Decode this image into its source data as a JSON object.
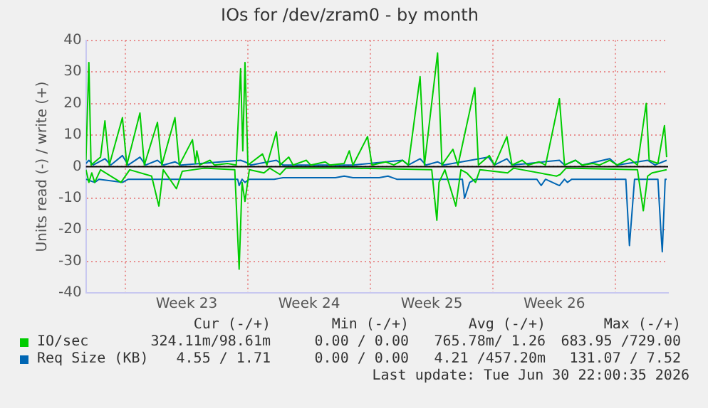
{
  "chart_data": {
    "type": "line",
    "title": "IOs for /dev/zram0 - by month",
    "ylabel": "Units read (-) / write (+)",
    "xlim": [
      "2026-05-29T18:00",
      "2026-07-02T00:00"
    ],
    "xticks": [
      {
        "value": "2026-06-01T00:00",
        "label": null
      },
      {
        "value": "2026-06-04T12:00",
        "label": "Week 23"
      },
      {
        "value": "2026-06-08T00:00",
        "label": null
      },
      {
        "value": "2026-06-11T12:00",
        "label": "Week 24"
      },
      {
        "value": "2026-06-15T00:00",
        "label": null
      },
      {
        "value": "2026-06-18T12:00",
        "label": "Week 25"
      },
      {
        "value": "2026-06-22T00:00",
        "label": null
      },
      {
        "value": "2026-06-25T12:00",
        "label": "Week 26"
      },
      {
        "value": "2026-06-29T00:00",
        "label": null
      }
    ],
    "ylim": [
      -40,
      40
    ],
    "yticks": [
      -40,
      -30,
      -20,
      -10,
      0,
      10,
      20,
      30,
      40
    ],
    "grid": true,
    "legend": "bottom",
    "ref_lines": [
      {
        "axis": "y",
        "value": 0,
        "color": "#000000"
      }
    ],
    "marker": "none",
    "line_style": "solid",
    "series": [
      {
        "name": "IO/sec",
        "color": "#00cc00",
        "x": [
          "2026-05-29T18:00",
          "2026-05-29T22:00",
          "2026-05-30T01:00",
          "2026-05-30T14:00",
          "2026-05-30T20:00",
          "2026-05-31T02:00",
          "2026-05-31T20:00",
          "2026-06-01T02:00",
          "2026-06-01T20:00",
          "2026-06-02T02:00",
          "2026-06-02T20:00",
          "2026-06-03T02:00",
          "2026-06-03T20:00",
          "2026-06-04T02:00",
          "2026-06-04T20:00",
          "2026-06-05T00:00",
          "2026-06-05T02:00",
          "2026-06-05T06:00",
          "2026-06-05T20:00",
          "2026-06-06T02:00",
          "2026-06-06T20:00",
          "2026-06-07T08:00",
          "2026-06-07T14:00",
          "2026-06-07T17:00",
          "2026-06-07T20:00",
          "2026-06-08T00:00",
          "2026-06-08T20:00",
          "2026-06-09T02:00",
          "2026-06-09T15:00",
          "2026-06-09T20:00",
          "2026-06-10T08:00",
          "2026-06-10T14:00",
          "2026-06-11T08:00",
          "2026-06-11T14:00",
          "2026-06-12T10:00",
          "2026-06-12T16:00",
          "2026-06-13T12:00",
          "2026-06-13T19:00",
          "2026-06-14T00:00",
          "2026-06-14T20:00",
          "2026-06-15T02:00",
          "2026-06-15T21:00",
          "2026-06-16T08:00",
          "2026-06-16T20:00",
          "2026-06-17T04:00",
          "2026-06-17T20:00",
          "2026-06-18T02:00",
          "2026-06-18T20:00",
          "2026-06-19T02:00",
          "2026-06-19T17:00",
          "2026-06-20T00:00",
          "2026-06-20T23:00",
          "2026-06-21T04:00",
          "2026-06-21T19:00",
          "2026-06-22T02:00",
          "2026-06-22T19:00",
          "2026-06-23T02:00",
          "2026-06-23T16:00",
          "2026-06-24T00:00",
          "2026-06-24T15:00",
          "2026-06-25T00:00",
          "2026-06-25T19:00",
          "2026-06-26T02:00",
          "2026-06-26T17:00",
          "2026-06-27T02:00",
          "2026-06-27T17:00",
          "2026-06-28T02:00",
          "2026-06-28T16:00",
          "2026-06-29T02:00",
          "2026-06-29T19:00",
          "2026-06-30T06:00",
          "2026-06-30T18:00",
          "2026-06-30T22:00",
          "2026-07-01T10:00",
          "2026-07-01T19:00",
          "2026-07-01T22:00"
        ],
        "values": [
          2,
          33,
          0.5,
          3,
          14.5,
          0.5,
          15.5,
          0.5,
          17,
          0.5,
          14,
          0.5,
          15.5,
          0.5,
          8.5,
          1,
          5,
          0.5,
          2,
          0.5,
          1,
          0.5,
          31,
          5,
          33,
          0.5,
          4,
          0.5,
          11,
          0.5,
          3,
          0.5,
          2,
          0.5,
          1.5,
          0.5,
          1,
          5,
          0.5,
          9.5,
          0.5,
          1.5,
          0.5,
          2,
          0.5,
          28.5,
          0.5,
          36,
          0.5,
          5.5,
          0.5,
          25,
          0.5,
          3.5,
          0.5,
          9.5,
          0.5,
          2,
          0.5,
          1.5,
          0.5,
          21.5,
          0.5,
          2,
          0.5,
          1,
          0.5,
          2,
          0.5,
          2.5,
          0.5,
          20,
          2,
          1,
          13,
          3
        ]
      },
      {
        "color": "#00cc00",
        "x": [
          "2026-05-29T18:00",
          "2026-05-29T22:00",
          "2026-05-30T02:00",
          "2026-05-30T06:00",
          "2026-05-30T14:00",
          "2026-05-31T18:00",
          "2026-06-01T06:00",
          "2026-06-02T12:00",
          "2026-06-02T22:00",
          "2026-06-03T04:00",
          "2026-06-03T22:00",
          "2026-06-04T06:00",
          "2026-06-05T12:00",
          "2026-06-07T06:00",
          "2026-06-07T12:00",
          "2026-06-07T16:00",
          "2026-06-07T20:00",
          "2026-06-08T02:00",
          "2026-06-08T22:00",
          "2026-06-09T06:00",
          "2026-06-09T20:00",
          "2026-06-10T04:00",
          "2026-06-14T00:00",
          "2026-06-18T12:00",
          "2026-06-18T19:00",
          "2026-06-18T22:00",
          "2026-06-19T06:00",
          "2026-06-19T21:00",
          "2026-06-20T04:00",
          "2026-06-20T12:00",
          "2026-06-21T00:00",
          "2026-06-21T06:00",
          "2026-06-22T20:00",
          "2026-06-23T04:00",
          "2026-06-25T15:00",
          "2026-06-25T20:00",
          "2026-06-26T04:00",
          "2026-06-30T06:00",
          "2026-06-30T14:00",
          "2026-06-30T20:00",
          "2026-07-01T02:00",
          "2026-07-01T22:00"
        ],
        "values": [
          -1,
          -5,
          -2,
          -5,
          -1,
          -5,
          -1,
          -3,
          -12.5,
          -1,
          -7,
          -1.5,
          -0.5,
          -1,
          -32.5,
          -5,
          -11,
          -1,
          -2,
          -0.5,
          -2.5,
          -0.5,
          -0.5,
          -1,
          -17,
          -5,
          -1,
          -12.5,
          -1,
          -2,
          -5,
          -1,
          -2,
          -0.5,
          -3,
          -2.5,
          -0.5,
          -1,
          -14,
          -3,
          -2,
          -1
        ]
      },
      {
        "name": "Req Size (KB)",
        "color": "#0066b3",
        "x": [
          "2026-05-29T18:00",
          "2026-05-29T22:00",
          "2026-05-30T04:00",
          "2026-05-30T20:00",
          "2026-05-31T04:00",
          "2026-05-31T20:00",
          "2026-06-01T04:00",
          "2026-06-01T20:00",
          "2026-06-02T04:00",
          "2026-06-02T20:00",
          "2026-06-03T04:00",
          "2026-06-03T20:00",
          "2026-06-04T04:00",
          "2026-06-07T14:00",
          "2026-06-07T20:00",
          "2026-06-08T04:00",
          "2026-06-09T15:00",
          "2026-06-10T00:00",
          "2026-06-14T00:00",
          "2026-06-16T20:00",
          "2026-06-17T04:00",
          "2026-06-17T20:00",
          "2026-06-18T04:00",
          "2026-06-18T20:00",
          "2026-06-19T04:00",
          "2026-06-21T18:00",
          "2026-06-22T02:00",
          "2026-06-22T19:00",
          "2026-06-23T02:00",
          "2026-06-25T19:00",
          "2026-06-26T02:00",
          "2026-06-26T17:00",
          "2026-06-27T02:00",
          "2026-06-28T16:00",
          "2026-06-29T02:00",
          "2026-06-30T20:00",
          "2026-07-01T06:00",
          "2026-07-01T22:00"
        ],
        "values": [
          1,
          2,
          0.5,
          2.5,
          0.5,
          3.5,
          0.5,
          3,
          0.5,
          2,
          0.5,
          1.5,
          0.5,
          2,
          1.5,
          0.5,
          2,
          0.5,
          0.5,
          2,
          0.5,
          2.5,
          0.5,
          1.5,
          0.5,
          3,
          0.5,
          2.5,
          0.5,
          2,
          0.5,
          2,
          0.5,
          2.5,
          0.5,
          2,
          0.5,
          2
        ]
      },
      {
        "color": "#0066b3",
        "x": [
          "2026-05-29T18:00",
          "2026-05-30T06:00",
          "2026-05-30T12:00",
          "2026-05-31T20:00",
          "2026-06-01T04:00",
          "2026-06-07T10:00",
          "2026-06-07T12:00",
          "2026-06-07T16:00",
          "2026-06-07T20:00",
          "2026-06-08T02:00",
          "2026-06-09T12:00",
          "2026-06-10T00:00",
          "2026-06-13T00:00",
          "2026-06-13T12:00",
          "2026-06-14T00:00",
          "2026-06-15T12:00",
          "2026-06-16T00:00",
          "2026-06-16T12:00",
          "2026-06-20T06:00",
          "2026-06-20T09:00",
          "2026-06-20T16:00",
          "2026-06-21T00:00",
          "2026-06-24T12:00",
          "2026-06-24T18:00",
          "2026-06-25T00:00",
          "2026-06-25T19:00",
          "2026-06-26T02:00",
          "2026-06-26T06:00",
          "2026-06-26T12:00",
          "2026-06-29T14:00",
          "2026-06-29T19:00",
          "2026-06-30T02:00",
          "2026-07-01T10:00",
          "2026-07-01T14:00",
          "2026-07-01T16:00",
          "2026-07-01T20:00",
          "2026-07-01T22:00"
        ],
        "values": [
          -4,
          -5,
          -4,
          -5,
          -4,
          -4,
          -6,
          -4,
          -5,
          -4,
          -4,
          -3.5,
          -3.5,
          -3,
          -3.5,
          -3.5,
          -3,
          -4,
          -4,
          -10,
          -5,
          -4,
          -4,
          -6,
          -4,
          -6,
          -4,
          -5,
          -4,
          -4,
          -25,
          -4,
          -4,
          -20,
          -27,
          -4,
          -4
        ]
      }
    ],
    "annotations": [
      "Cur (-/+)",
      "Min (-/+)",
      "Avg (-/+)",
      "Max (-/+)",
      "324.11m/98.61m",
      "0.00 / 0.00",
      "765.78m/ 1.26",
      "683.95 /729.00",
      "4.55 / 1.71",
      "0.00 / 0.00",
      "4.21 /457.20m",
      "131.07 / 7.52",
      "Last update: Tue Jun 30 22:00:35 2026"
    ]
  }
}
